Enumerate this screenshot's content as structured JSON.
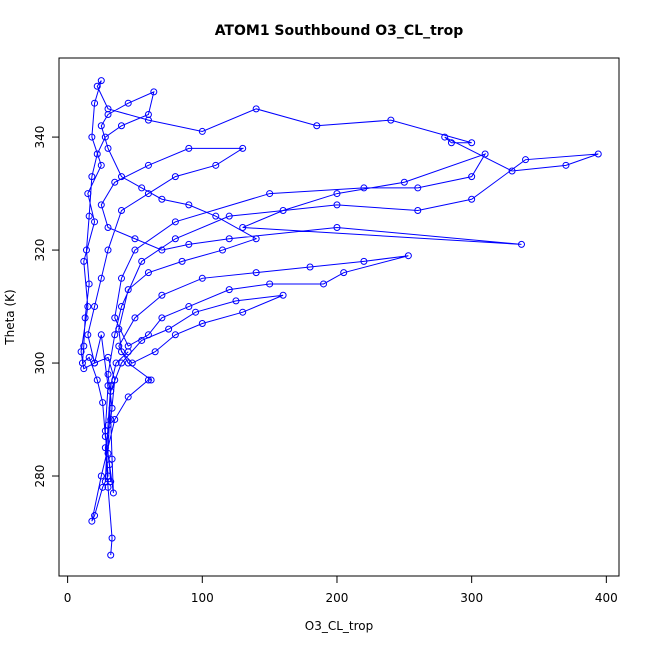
{
  "chart_data": {
    "type": "scatter-line",
    "title": "ATOM1 Southbound O3_CL_trop",
    "x_label": "O3_CL_trop",
    "y_label": "Theta (K)",
    "xlim": [
      -6.4,
      409.4
    ],
    "ylim": [
      262.3,
      354
    ],
    "xticks": [
      0,
      100,
      200,
      300,
      400
    ],
    "yticks": [
      280,
      300,
      320,
      340
    ],
    "series": [
      {
        "color": "#0000ff",
        "x": [
          32,
          33,
          30,
          28,
          33,
          30,
          35,
          40,
          55,
          80,
          120,
          200,
          260,
          300,
          340,
          394,
          370,
          330,
          280,
          285,
          300,
          240,
          185,
          140,
          100,
          60,
          30,
          22,
          25,
          20,
          18,
          25,
          15,
          20,
          12,
          15,
          10,
          12,
          20,
          25,
          30,
          28,
          30,
          26,
          20,
          18,
          25,
          35,
          45,
          60,
          62,
          45,
          38,
          50,
          70,
          100,
          140,
          180,
          220,
          253,
          205,
          190,
          150,
          120,
          90,
          70,
          60,
          45,
          35,
          40,
          50,
          80,
          150,
          220,
          260,
          300,
          310,
          250,
          200,
          160,
          130,
          337,
          200,
          120,
          90,
          70,
          50,
          30,
          25,
          35,
          60,
          90,
          130,
          110,
          80,
          60,
          40,
          30,
          25,
          20,
          15,
          20,
          30,
          35,
          32,
          33,
          34,
          30,
          32,
          40,
          55,
          75,
          95,
          125,
          160,
          130,
          100,
          80,
          65,
          48,
          40,
          38,
          45,
          60,
          85,
          115,
          140,
          110,
          90,
          70,
          55,
          40,
          30,
          25,
          30,
          45,
          64,
          60,
          40,
          28,
          22,
          18,
          16,
          14,
          16,
          13,
          12,
          11,
          16,
          22,
          26,
          28,
          31,
          32,
          28,
          30,
          32,
          36,
          45
        ],
        "values": [
          266,
          269,
          278,
          285,
          292,
          298,
          305,
          310,
          318,
          322,
          326,
          328,
          327,
          329,
          336,
          337,
          335,
          334,
          340,
          339,
          339,
          343,
          342,
          345,
          341,
          343,
          345,
          349,
          350,
          346,
          340,
          335,
          330,
          325,
          318,
          310,
          302,
          299,
          300,
          305,
          296,
          288,
          280,
          278,
          273,
          272,
          280,
          290,
          294,
          297,
          297,
          300,
          303,
          308,
          312,
          315,
          316,
          317,
          318,
          319,
          316,
          314,
          314,
          313,
          310,
          308,
          305,
          303,
          308,
          315,
          320,
          325,
          330,
          331,
          331,
          333,
          337,
          332,
          330,
          327,
          324,
          321,
          324,
          322,
          321,
          320,
          322,
          324,
          328,
          332,
          335,
          338,
          338,
          335,
          333,
          330,
          327,
          320,
          315,
          310,
          305,
          300,
          301,
          297,
          290,
          283,
          277,
          284,
          295,
          300,
          304,
          306,
          309,
          311,
          312,
          309,
          307,
          305,
          302,
          300,
          302,
          306,
          313,
          316,
          318,
          320,
          322,
          326,
          328,
          329,
          331,
          333,
          338,
          342,
          344,
          346,
          348,
          344,
          342,
          340,
          337,
          333,
          326,
          320,
          314,
          308,
          303,
          300,
          301,
          297,
          293,
          287,
          282,
          279,
          279,
          289,
          296,
          300,
          302
        ]
      }
    ]
  }
}
